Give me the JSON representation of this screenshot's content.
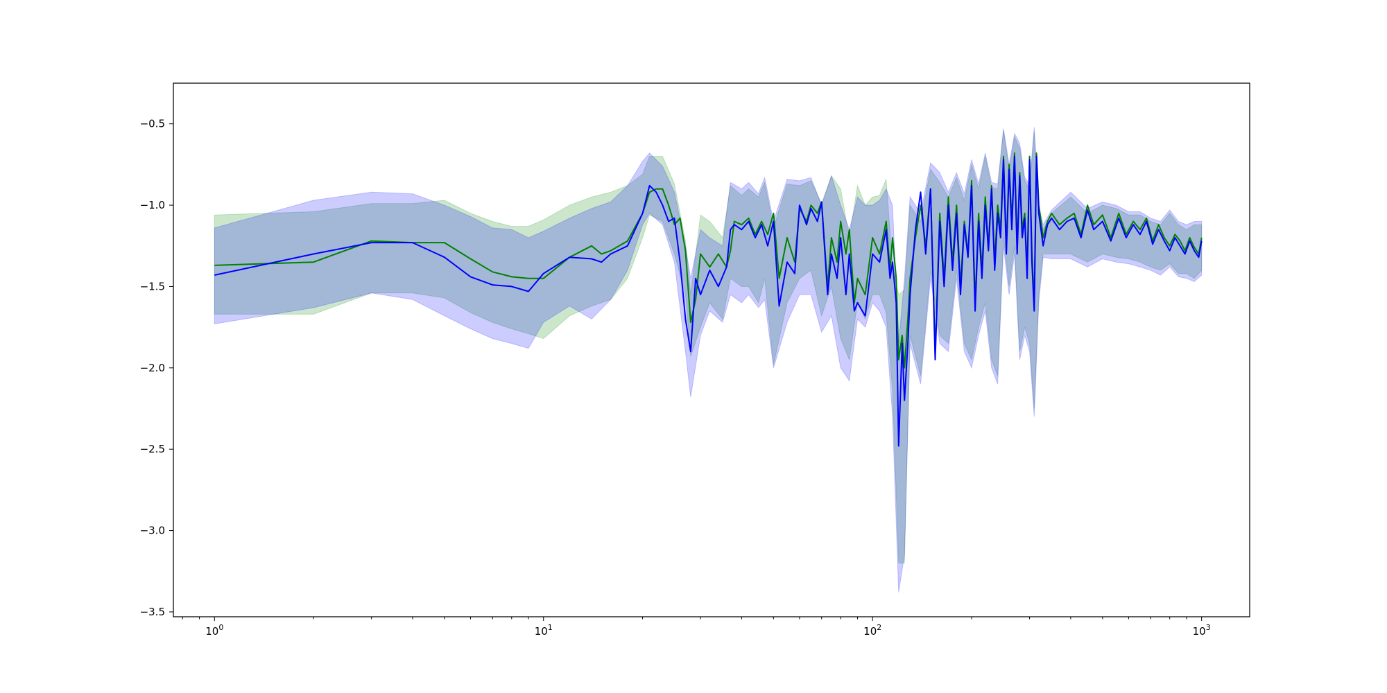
{
  "chart_data": {
    "type": "line",
    "title": "",
    "xlabel": "",
    "ylabel": "",
    "xscale": "log",
    "xlim": [
      0.75,
      1400
    ],
    "ylim": [
      -3.53,
      -0.25
    ],
    "grid": false,
    "legend": "none",
    "x_ticks": [
      {
        "value": 1,
        "base": "10",
        "exp": "0"
      },
      {
        "value": 10,
        "base": "10",
        "exp": "1"
      },
      {
        "value": 100,
        "base": "10",
        "exp": "2"
      },
      {
        "value": 1000,
        "base": "10",
        "exp": "3"
      }
    ],
    "y_ticks": [
      {
        "value": -0.5,
        "label": "−0.5"
      },
      {
        "value": -1.0,
        "label": "−1.0"
      },
      {
        "value": -1.5,
        "label": "−1.5"
      },
      {
        "value": -2.0,
        "label": "−2.0"
      },
      {
        "value": -2.5,
        "label": "−2.5"
      },
      {
        "value": -3.0,
        "label": "−3.0"
      },
      {
        "value": -3.5,
        "label": "−3.5"
      }
    ],
    "bands": [
      {
        "color": "#008000",
        "opacity": 0.2,
        "x": [
          1,
          2,
          3,
          4,
          5,
          6,
          7,
          8,
          9,
          10,
          12,
          14,
          16,
          18,
          20,
          21,
          23,
          25,
          27,
          28,
          30,
          32,
          35,
          37,
          40,
          42,
          45,
          47,
          50,
          55,
          60,
          65,
          70,
          75,
          80,
          85,
          90,
          95,
          100,
          105,
          110,
          115,
          120,
          125,
          130,
          140,
          150,
          160,
          170,
          180,
          190,
          200,
          210,
          220,
          230,
          240,
          250,
          260,
          270,
          280,
          290,
          300,
          310,
          320,
          330,
          350,
          400,
          450,
          500,
          550,
          600,
          650,
          700,
          750,
          800,
          850,
          900,
          950,
          1000
        ],
        "upper": [
          -1.06,
          -1.04,
          -0.99,
          -0.99,
          -0.97,
          -1.05,
          -1.1,
          -1.13,
          -1.13,
          -1.09,
          -1.0,
          -0.95,
          -0.92,
          -0.88,
          -0.81,
          -0.7,
          -0.7,
          -0.87,
          -1.22,
          -1.55,
          -1.06,
          -1.1,
          -1.2,
          -0.88,
          -0.94,
          -0.9,
          -0.95,
          -0.86,
          -1.14,
          -0.87,
          -0.88,
          -0.85,
          -0.99,
          -0.82,
          -0.9,
          -1.2,
          -0.88,
          -1.0,
          -0.95,
          -0.94,
          -0.84,
          -1.38,
          -1.55,
          -1.52,
          -1.0,
          -1.1,
          -0.78,
          -0.86,
          -0.95,
          -0.83,
          -0.97,
          -0.75,
          -0.9,
          -0.7,
          -0.89,
          -0.9,
          -0.54,
          -0.78,
          -0.58,
          -0.65,
          -0.85,
          -0.9,
          -0.55,
          -1.0,
          -1.15,
          -1.05,
          -0.95,
          -1.05,
          -1.0,
          -1.02,
          -1.06,
          -1.06,
          -1.1,
          -1.12,
          -1.05,
          -1.12,
          -1.15,
          -1.12,
          -1.12
        ],
        "lower": [
          -1.67,
          -1.67,
          -1.54,
          -1.54,
          -1.57,
          -1.66,
          -1.72,
          -1.76,
          -1.79,
          -1.82,
          -1.68,
          -1.62,
          -1.58,
          -1.45,
          -1.2,
          -1.06,
          -1.1,
          -1.3,
          -1.55,
          -1.93,
          -1.75,
          -1.6,
          -1.7,
          -1.45,
          -1.5,
          -1.5,
          -1.6,
          -1.45,
          -1.98,
          -1.6,
          -1.45,
          -1.4,
          -1.68,
          -1.5,
          -1.82,
          -1.95,
          -1.6,
          -1.7,
          -1.55,
          -1.55,
          -1.66,
          -2.14,
          -3.2,
          -3.2,
          -1.8,
          -2.05,
          -1.4,
          -1.8,
          -1.85,
          -1.4,
          -1.85,
          -1.95,
          -1.75,
          -1.6,
          -1.95,
          -2.05,
          -1.2,
          -1.5,
          -1.25,
          -1.9,
          -1.75,
          -1.85,
          -2.25,
          -1.55,
          -1.3,
          -1.3,
          -1.3,
          -1.35,
          -1.3,
          -1.32,
          -1.33,
          -1.35,
          -1.38,
          -1.4,
          -1.36,
          -1.42,
          -1.42,
          -1.45,
          -1.4
        ]
      },
      {
        "color": "#0000ff",
        "opacity": 0.2,
        "x": [
          1,
          2,
          3,
          4,
          5,
          6,
          7,
          8,
          9,
          10,
          12,
          14,
          16,
          18,
          20,
          21,
          23,
          25,
          27,
          28,
          30,
          32,
          35,
          37,
          40,
          42,
          45,
          47,
          50,
          55,
          60,
          65,
          70,
          75,
          80,
          85,
          90,
          95,
          100,
          105,
          110,
          115,
          120,
          125,
          130,
          140,
          150,
          160,
          170,
          180,
          190,
          200,
          210,
          220,
          230,
          240,
          250,
          260,
          270,
          280,
          290,
          300,
          310,
          320,
          330,
          350,
          400,
          450,
          500,
          550,
          600,
          650,
          700,
          750,
          800,
          850,
          900,
          950,
          1000
        ],
        "upper": [
          -1.14,
          -0.97,
          -0.92,
          -0.93,
          -1.0,
          -1.07,
          -1.14,
          -1.15,
          -1.2,
          -1.16,
          -1.08,
          -1.02,
          -0.98,
          -0.88,
          -0.73,
          -0.68,
          -0.76,
          -0.92,
          -1.25,
          -1.45,
          -1.15,
          -1.2,
          -1.25,
          -0.86,
          -0.9,
          -0.86,
          -0.93,
          -0.83,
          -1.1,
          -0.84,
          -0.85,
          -0.83,
          -1.0,
          -0.82,
          -1.0,
          -1.15,
          -0.95,
          -1.0,
          -1.0,
          -0.97,
          -0.9,
          -1.0,
          -1.85,
          -1.45,
          -0.95,
          -1.05,
          -0.74,
          -0.8,
          -0.92,
          -0.8,
          -0.93,
          -0.72,
          -0.87,
          -0.68,
          -0.86,
          -0.87,
          -0.53,
          -0.75,
          -0.56,
          -0.62,
          -0.83,
          -0.87,
          -0.52,
          -1.0,
          -1.12,
          -1.03,
          -0.92,
          -1.02,
          -0.98,
          -1.0,
          -1.04,
          -1.04,
          -1.08,
          -1.1,
          -1.03,
          -1.1,
          -1.12,
          -1.1,
          -1.1
        ],
        "lower": [
          -1.73,
          -1.63,
          -1.54,
          -1.58,
          -1.68,
          -1.76,
          -1.82,
          -1.85,
          -1.88,
          -1.72,
          -1.62,
          -1.7,
          -1.58,
          -1.4,
          -1.12,
          -1.05,
          -1.12,
          -1.35,
          -1.9,
          -2.18,
          -1.8,
          -1.65,
          -1.72,
          -1.55,
          -1.6,
          -1.55,
          -1.63,
          -1.58,
          -2.0,
          -1.72,
          -1.55,
          -1.55,
          -1.78,
          -1.68,
          -2.0,
          -2.08,
          -1.7,
          -1.75,
          -1.6,
          -1.65,
          -1.75,
          -2.3,
          -3.38,
          -3.15,
          -1.85,
          -2.1,
          -1.45,
          -1.85,
          -1.9,
          -1.45,
          -1.9,
          -2.0,
          -1.8,
          -1.65,
          -2.0,
          -2.1,
          -1.25,
          -1.55,
          -1.3,
          -1.95,
          -1.8,
          -1.9,
          -2.3,
          -1.6,
          -1.32,
          -1.33,
          -1.33,
          -1.38,
          -1.33,
          -1.35,
          -1.36,
          -1.38,
          -1.4,
          -1.43,
          -1.38,
          -1.44,
          -1.45,
          -1.47,
          -1.43
        ]
      }
    ],
    "series": [
      {
        "color": "#008000",
        "x": [
          1,
          2,
          3,
          4,
          5,
          6,
          7,
          8,
          9,
          10,
          12,
          14,
          15,
          16,
          18,
          20,
          21,
          22,
          23,
          24,
          25,
          26,
          27,
          28,
          29,
          30,
          32,
          34,
          36,
          37,
          38,
          40,
          42,
          44,
          46,
          48,
          50,
          52,
          55,
          58,
          60,
          63,
          65,
          68,
          70,
          73,
          75,
          78,
          80,
          83,
          85,
          88,
          90,
          95,
          100,
          105,
          110,
          113,
          115,
          118,
          120,
          123,
          125,
          128,
          130,
          135,
          140,
          145,
          150,
          155,
          160,
          165,
          170,
          175,
          180,
          185,
          190,
          195,
          200,
          205,
          210,
          215,
          220,
          225,
          230,
          235,
          240,
          245,
          250,
          255,
          260,
          265,
          270,
          275,
          280,
          285,
          290,
          295,
          300,
          305,
          310,
          315,
          320,
          330,
          340,
          350,
          370,
          390,
          410,
          430,
          450,
          470,
          500,
          530,
          560,
          590,
          620,
          650,
          680,
          710,
          740,
          770,
          800,
          830,
          860,
          890,
          920,
          950,
          980,
          1000
        ],
        "y": [
          -1.37,
          -1.35,
          -1.22,
          -1.23,
          -1.23,
          -1.33,
          -1.41,
          -1.44,
          -1.45,
          -1.45,
          -1.32,
          -1.25,
          -1.3,
          -1.28,
          -1.22,
          -1.05,
          -0.92,
          -0.9,
          -0.9,
          -1.0,
          -1.12,
          -1.08,
          -1.28,
          -1.72,
          -1.58,
          -1.3,
          -1.38,
          -1.3,
          -1.38,
          -1.28,
          -1.1,
          -1.12,
          -1.08,
          -1.18,
          -1.1,
          -1.18,
          -1.05,
          -1.45,
          -1.2,
          -1.35,
          -1.02,
          -1.1,
          -1.0,
          -1.05,
          -0.98,
          -1.5,
          -1.2,
          -1.35,
          -1.1,
          -1.3,
          -1.15,
          -1.6,
          -1.45,
          -1.55,
          -1.2,
          -1.3,
          -1.1,
          -1.4,
          -1.2,
          -1.45,
          -1.95,
          -1.8,
          -2.0,
          -1.7,
          -1.45,
          -1.2,
          -1.0,
          -1.25,
          -0.9,
          -1.9,
          -1.05,
          -1.45,
          -0.95,
          -1.35,
          -1.0,
          -1.5,
          -1.1,
          -1.3,
          -0.85,
          -1.6,
          -1.05,
          -1.4,
          -0.95,
          -1.25,
          -0.88,
          -1.35,
          -1.0,
          -1.15,
          -0.7,
          -1.25,
          -0.75,
          -1.1,
          -0.68,
          -1.25,
          -0.8,
          -1.15,
          -1.05,
          -1.4,
          -0.7,
          -1.3,
          -1.6,
          -0.68,
          -1.0,
          -1.2,
          -1.1,
          -1.05,
          -1.12,
          -1.08,
          -1.05,
          -1.18,
          -1.0,
          -1.12,
          -1.06,
          -1.2,
          -1.05,
          -1.18,
          -1.1,
          -1.15,
          -1.08,
          -1.22,
          -1.12,
          -1.2,
          -1.25,
          -1.18,
          -1.22,
          -1.28,
          -1.2,
          -1.26,
          -1.3,
          -1.2
        ]
      },
      {
        "color": "#0000ff",
        "x": [
          1,
          2,
          3,
          4,
          5,
          6,
          7,
          8,
          9,
          10,
          12,
          14,
          15,
          16,
          18,
          20,
          21,
          22,
          23,
          24,
          25,
          26,
          27,
          28,
          29,
          30,
          32,
          34,
          36,
          37,
          38,
          40,
          42,
          44,
          46,
          48,
          50,
          52,
          55,
          58,
          60,
          63,
          65,
          68,
          70,
          73,
          75,
          78,
          80,
          83,
          85,
          88,
          90,
          95,
          100,
          105,
          110,
          113,
          115,
          118,
          120,
          123,
          125,
          128,
          130,
          135,
          140,
          145,
          150,
          155,
          160,
          165,
          170,
          175,
          180,
          185,
          190,
          195,
          200,
          205,
          210,
          215,
          220,
          225,
          230,
          235,
          240,
          245,
          250,
          255,
          260,
          265,
          270,
          275,
          280,
          285,
          290,
          295,
          300,
          305,
          310,
          315,
          320,
          330,
          340,
          350,
          370,
          390,
          410,
          430,
          450,
          470,
          500,
          530,
          560,
          590,
          620,
          650,
          680,
          710,
          740,
          770,
          800,
          830,
          860,
          890,
          920,
          950,
          980,
          1000
        ],
        "y": [
          -1.43,
          -1.3,
          -1.23,
          -1.23,
          -1.32,
          -1.44,
          -1.49,
          -1.5,
          -1.53,
          -1.42,
          -1.32,
          -1.33,
          -1.35,
          -1.3,
          -1.25,
          -1.05,
          -0.88,
          -0.92,
          -1.0,
          -1.1,
          -1.08,
          -1.35,
          -1.7,
          -1.9,
          -1.45,
          -1.55,
          -1.4,
          -1.5,
          -1.38,
          -1.15,
          -1.12,
          -1.15,
          -1.1,
          -1.2,
          -1.12,
          -1.25,
          -1.1,
          -1.62,
          -1.35,
          -1.42,
          -1.0,
          -1.12,
          -1.02,
          -1.1,
          -0.98,
          -1.55,
          -1.3,
          -1.45,
          -1.2,
          -1.55,
          -1.3,
          -1.65,
          -1.6,
          -1.68,
          -1.3,
          -1.35,
          -1.15,
          -1.45,
          -1.35,
          -1.6,
          -2.48,
          -1.85,
          -2.2,
          -1.85,
          -1.55,
          -1.15,
          -0.92,
          -1.3,
          -0.9,
          -1.95,
          -1.1,
          -1.5,
          -1.0,
          -1.4,
          -1.05,
          -1.55,
          -1.12,
          -1.32,
          -0.88,
          -1.65,
          -1.1,
          -1.45,
          -1.0,
          -1.28,
          -0.9,
          -1.4,
          -1.05,
          -1.2,
          -0.72,
          -1.3,
          -0.78,
          -1.15,
          -0.7,
          -1.3,
          -0.82,
          -1.2,
          -1.08,
          -1.45,
          -0.72,
          -1.35,
          -1.65,
          -0.7,
          -1.05,
          -1.25,
          -1.12,
          -1.08,
          -1.15,
          -1.1,
          -1.08,
          -1.2,
          -1.03,
          -1.15,
          -1.1,
          -1.22,
          -1.08,
          -1.2,
          -1.12,
          -1.18,
          -1.1,
          -1.24,
          -1.15,
          -1.22,
          -1.28,
          -1.2,
          -1.25,
          -1.3,
          -1.22,
          -1.28,
          -1.32,
          -1.22
        ]
      }
    ]
  }
}
